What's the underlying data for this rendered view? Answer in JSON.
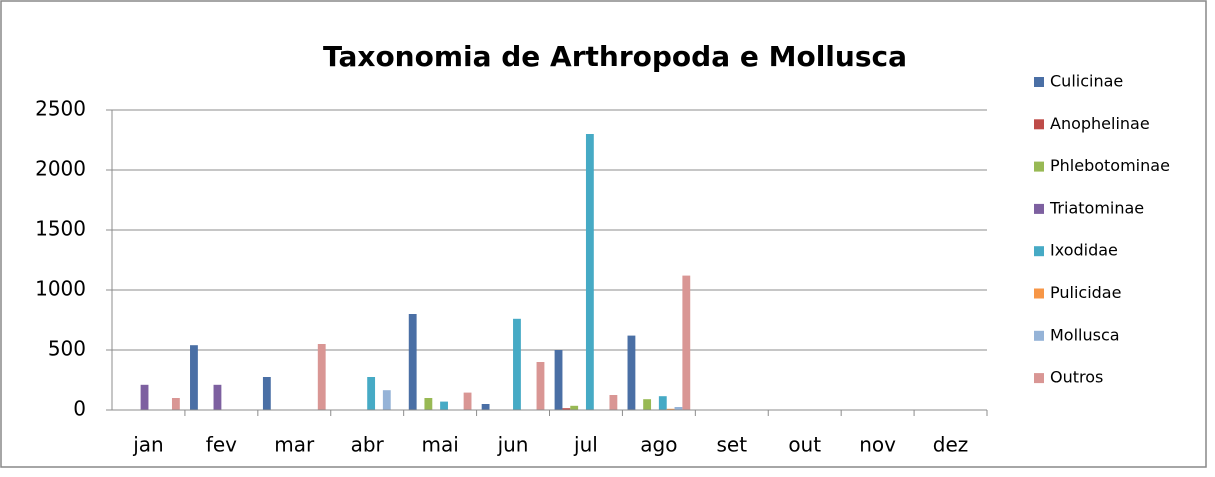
{
  "chart_data": {
    "type": "bar",
    "title": "Taxonomia de Arthropoda e Mollusca",
    "categories": [
      "jan",
      "fev",
      "mar",
      "abr",
      "mai",
      "jun",
      "jul",
      "ago",
      "set",
      "out",
      "nov",
      "dez"
    ],
    "series": [
      {
        "name": "Culicinae",
        "color": "#4a6fa5",
        "values": [
          0,
          540,
          275,
          0,
          800,
          50,
          500,
          620,
          0,
          0,
          0,
          0
        ]
      },
      {
        "name": "Anophelinae",
        "color": "#be4b48",
        "values": [
          0,
          0,
          0,
          0,
          0,
          0,
          15,
          0,
          0,
          0,
          0,
          0
        ]
      },
      {
        "name": "Phlebotominae",
        "color": "#98b954",
        "values": [
          0,
          0,
          0,
          0,
          100,
          0,
          35,
          90,
          0,
          0,
          0,
          0
        ]
      },
      {
        "name": "Triatominae",
        "color": "#7d60a0",
        "values": [
          210,
          210,
          0,
          0,
          0,
          0,
          0,
          0,
          0,
          0,
          0,
          0
        ]
      },
      {
        "name": "Ixodidae",
        "color": "#46aac5",
        "values": [
          0,
          0,
          0,
          275,
          70,
          760,
          2300,
          115,
          0,
          0,
          0,
          0
        ]
      },
      {
        "name": "Pulicidae",
        "color": "#f79646",
        "values": [
          0,
          0,
          0,
          0,
          0,
          0,
          0,
          10,
          0,
          0,
          0,
          0
        ]
      },
      {
        "name": "Mollusca",
        "color": "#95b3d7",
        "values": [
          0,
          0,
          0,
          165,
          0,
          0,
          0,
          25,
          0,
          0,
          0,
          0
        ]
      },
      {
        "name": "Outros",
        "color": "#d99694",
        "values": [
          100,
          0,
          550,
          0,
          145,
          400,
          125,
          1120,
          0,
          0,
          0,
          0
        ]
      }
    ],
    "ylim": [
      0,
      2500
    ],
    "yticks": [
      0,
      500,
      1000,
      1500,
      2000,
      2500
    ],
    "grid": true,
    "legend": "right"
  }
}
